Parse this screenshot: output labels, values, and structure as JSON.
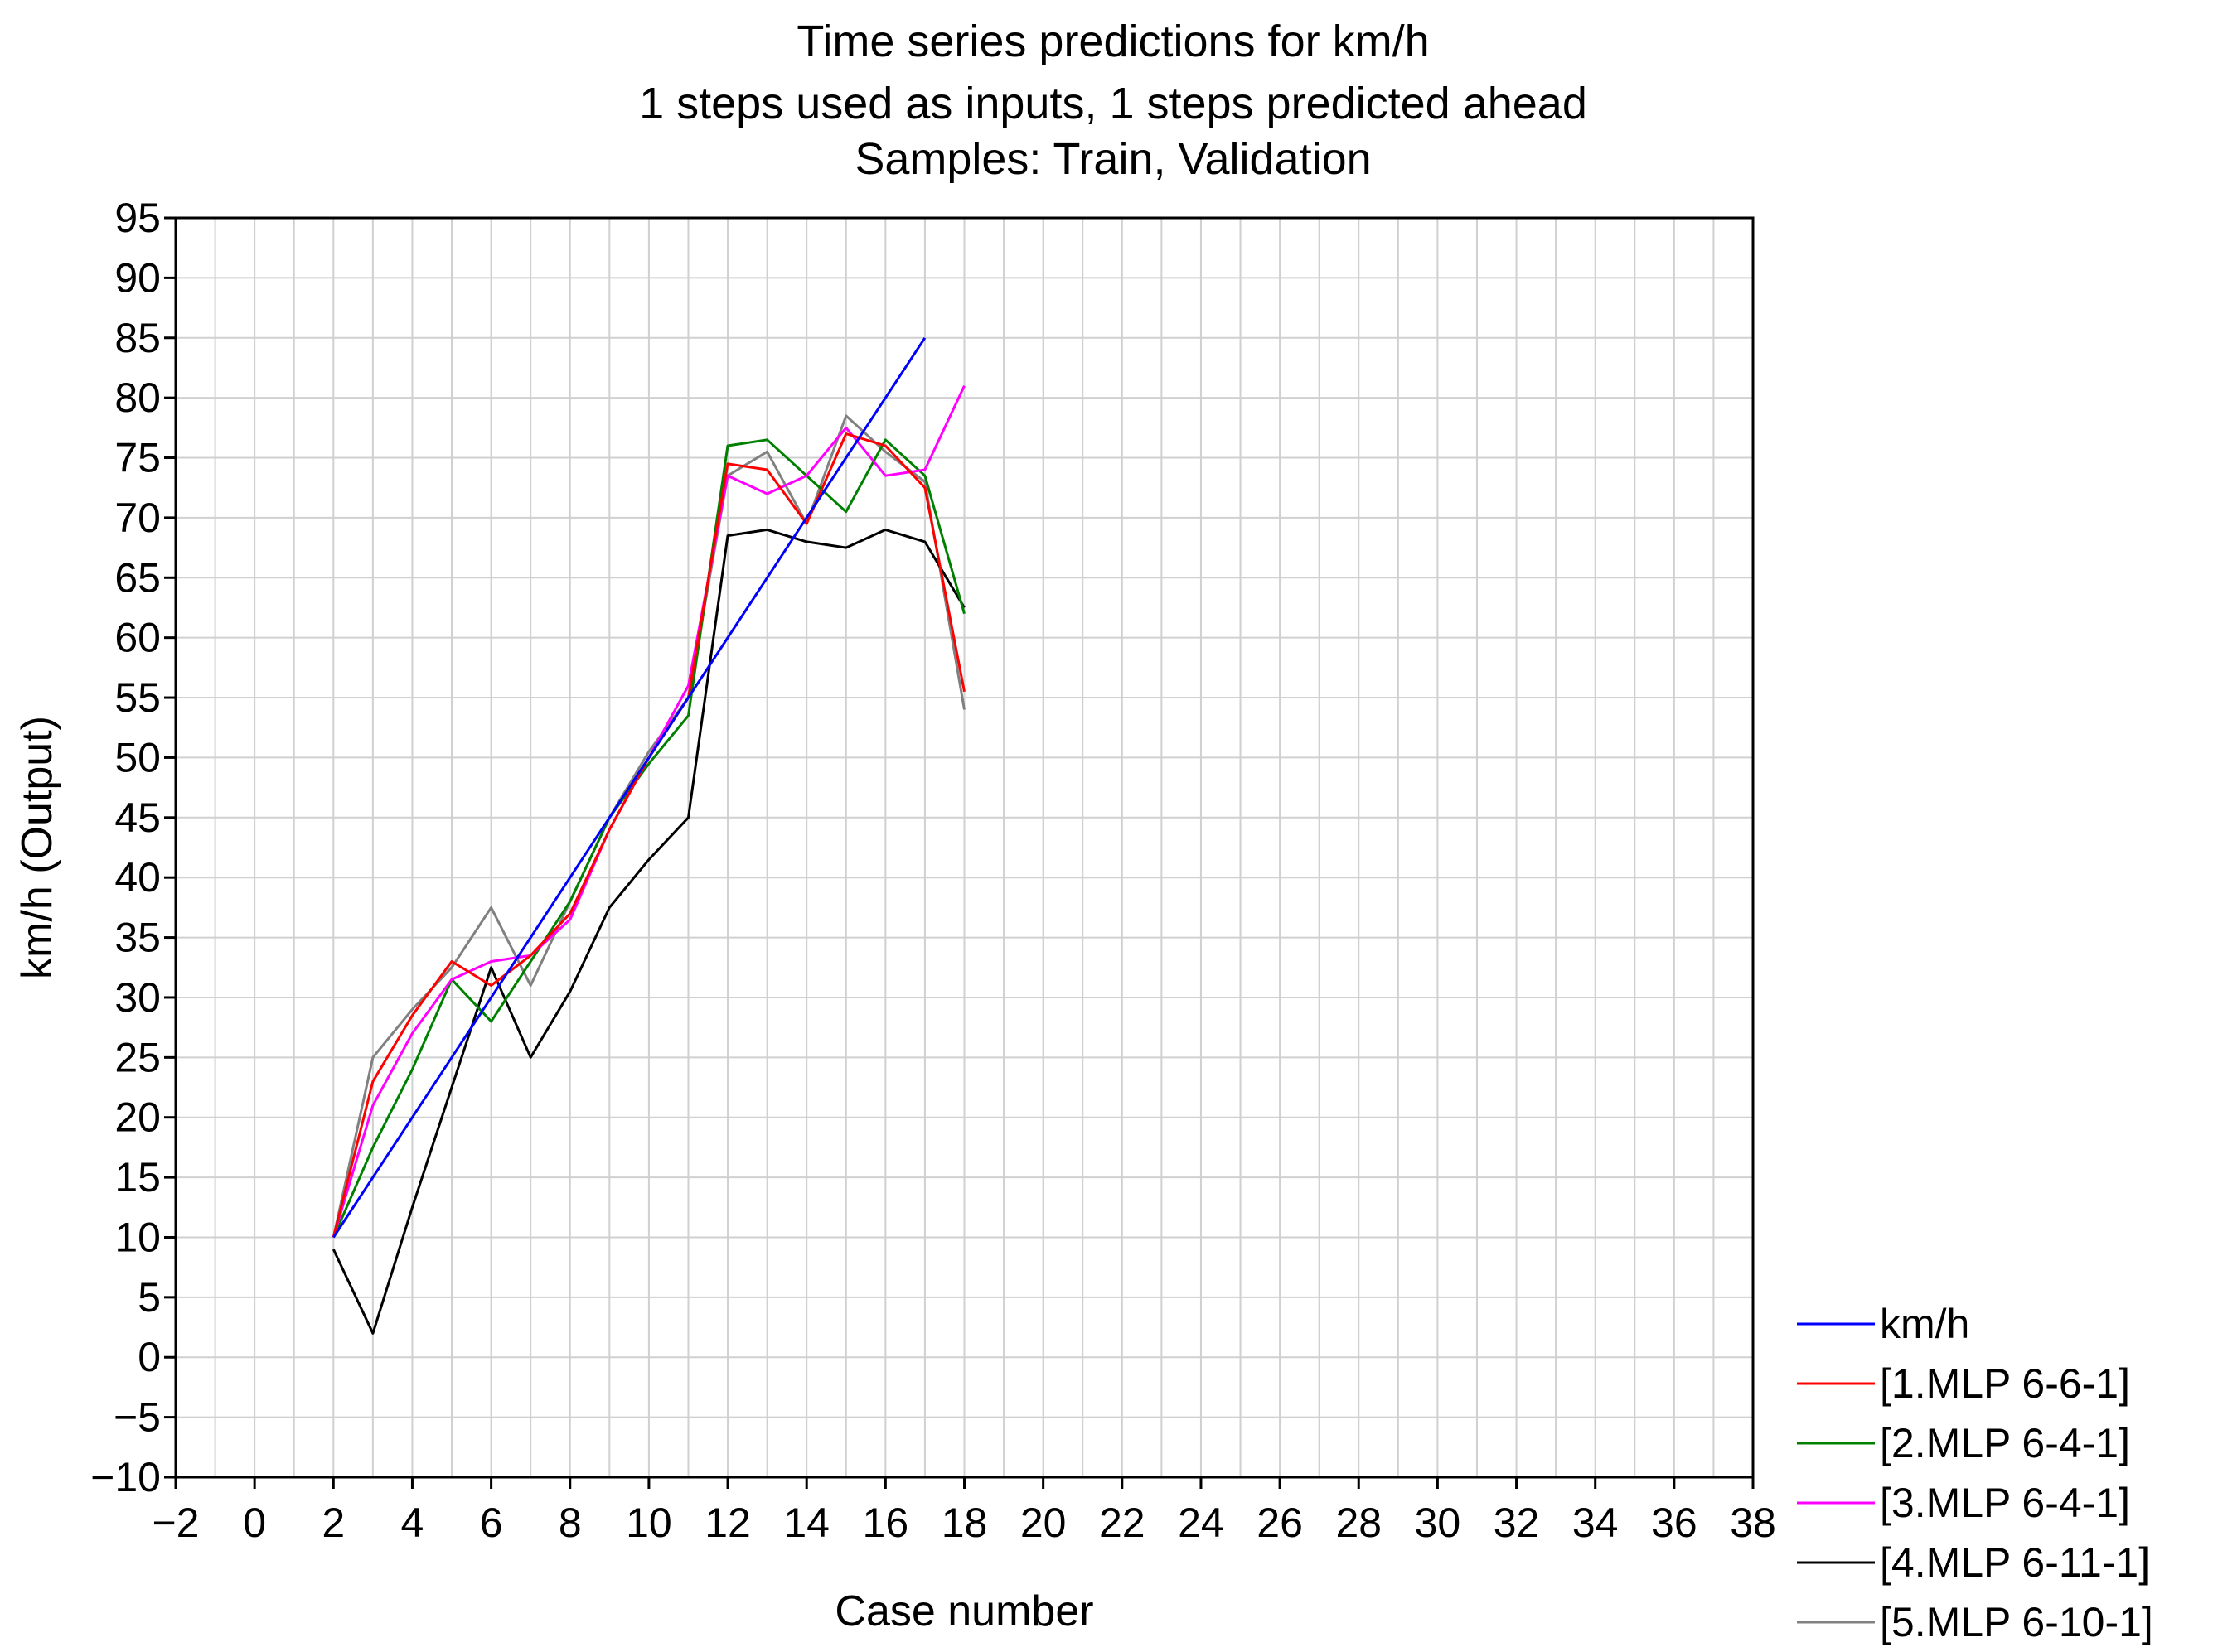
{
  "chart_data": {
    "type": "line",
    "title": [
      "Time series predictions for km/h",
      "1 steps used as inputs, 1 steps predicted ahead",
      "Samples: Train, Validation"
    ],
    "xlabel": "Case number",
    "ylabel": "km/h (Output)",
    "xlim": [
      -2,
      38
    ],
    "ylim": [
      -10,
      95
    ],
    "xticks": [
      -2,
      0,
      2,
      4,
      6,
      8,
      10,
      12,
      14,
      16,
      18,
      20,
      22,
      24,
      26,
      28,
      30,
      32,
      34,
      36,
      38
    ],
    "yticks": [
      -10,
      -5,
      0,
      5,
      10,
      15,
      20,
      25,
      30,
      35,
      40,
      45,
      50,
      55,
      60,
      65,
      70,
      75,
      80,
      85,
      90,
      95
    ],
    "x_tick_labels": [
      "−2",
      "0",
      "2",
      "4",
      "6",
      "8",
      "10",
      "12",
      "14",
      "16",
      "18",
      "20",
      "22",
      "24",
      "26",
      "28",
      "30",
      "32",
      "34",
      "36",
      "38"
    ],
    "y_tick_labels": [
      "−10",
      "−5",
      "0",
      "5",
      "10",
      "15",
      "20",
      "25",
      "30",
      "35",
      "40",
      "45",
      "50",
      "55",
      "60",
      "65",
      "70",
      "75",
      "80",
      "85",
      "90",
      "95"
    ],
    "grid": true,
    "legend_position": "bottom-right outside",
    "series": [
      {
        "name": "km/h",
        "color": "#0000ff",
        "x": [
          2,
          17
        ],
        "y": [
          10,
          85
        ]
      },
      {
        "name": "[1.MLP 6-6-1]",
        "color": "#ff0000",
        "x": [
          2,
          3,
          4,
          5,
          6,
          7,
          8,
          9,
          10,
          11,
          12,
          13,
          14,
          15,
          16,
          17,
          18
        ],
        "y": [
          10,
          23,
          28.5,
          33,
          31,
          33.5,
          37,
          44,
          50,
          55,
          74.5,
          74,
          69.5,
          77,
          76,
          72.5,
          55.5
        ]
      },
      {
        "name": "[2.MLP 6-4-1]",
        "color": "#008000",
        "x": [
          2,
          3,
          4,
          5,
          6,
          7,
          8,
          9,
          10,
          11,
          12,
          13,
          14,
          15,
          16,
          17,
          18
        ],
        "y": [
          10,
          17.5,
          24,
          31.5,
          28,
          33,
          38,
          45,
          49.5,
          53.5,
          76,
          76.5,
          73.5,
          70.5,
          76.5,
          73.5,
          62
        ]
      },
      {
        "name": "[3.MLP 6-4-1]",
        "color": "#ff00ff",
        "x": [
          2,
          3,
          4,
          5,
          6,
          7,
          8,
          9,
          10,
          11,
          12,
          13,
          14,
          15,
          16,
          17,
          18
        ],
        "y": [
          10,
          21,
          27,
          31.5,
          33,
          33.5,
          36.5,
          44,
          50,
          56,
          73.5,
          72,
          73.5,
          77.5,
          73.5,
          74,
          81
        ]
      },
      {
        "name": "[4.MLP 6-11-1]",
        "color": "#000000",
        "x": [
          2,
          3,
          4,
          5,
          6,
          7,
          8,
          9,
          10,
          11,
          12,
          13,
          14,
          15,
          16,
          17,
          18
        ],
        "y": [
          9,
          2,
          12.5,
          22.5,
          32.5,
          25,
          30.5,
          37.5,
          41.5,
          45,
          68.5,
          69,
          68,
          67.5,
          69,
          68,
          62.5
        ]
      },
      {
        "name": "[5.MLP 6-10-1]",
        "color": "#808080",
        "x": [
          2,
          3,
          4,
          5,
          6,
          7,
          8,
          9,
          10,
          11,
          12,
          13,
          14,
          15,
          16,
          17,
          18
        ],
        "y": [
          10,
          25,
          29,
          32.5,
          37.5,
          31,
          38,
          45,
          50.5,
          55,
          73.5,
          75.5,
          69.5,
          78.5,
          75.5,
          73,
          54
        ]
      }
    ]
  }
}
